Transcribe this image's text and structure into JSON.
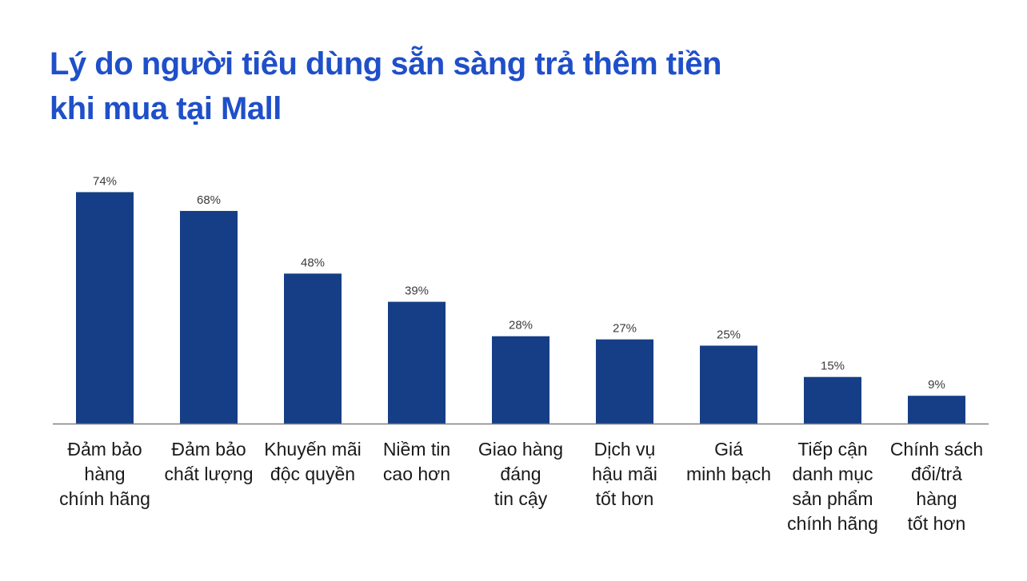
{
  "title": {
    "line1": "Lý do người tiêu dùng sẵn sàng trả thêm tiền",
    "line2": "khi mua tại Mall"
  },
  "chart_data": {
    "type": "bar",
    "title": "Lý do người tiêu dùng sẵn sàng trả thêm tiền khi mua tại Mall",
    "xlabel": "",
    "ylabel": "",
    "ylim": [
      0,
      80
    ],
    "grid": false,
    "legend": "none",
    "bar_color": "#163e86",
    "title_color": "#1f4fc9",
    "categories": [
      [
        "Đảm bảo",
        "hàng",
        "chính hãng"
      ],
      [
        "Đảm bảo",
        "chất lượng"
      ],
      [
        "Khuyến mãi",
        "độc quyền"
      ],
      [
        "Niềm tin",
        "cao hơn"
      ],
      [
        "Giao hàng",
        "đáng",
        "tin cậy"
      ],
      [
        "Dịch vụ",
        "hậu mãi",
        "tốt hơn"
      ],
      [
        "Giá",
        "minh bạch"
      ],
      [
        "Tiếp cận",
        "danh mục",
        "sản phẩm",
        "chính hãng"
      ],
      [
        "Chính sách",
        "đổi/trả",
        "hàng",
        "tốt hơn"
      ]
    ],
    "values": [
      74,
      68,
      48,
      39,
      28,
      27,
      25,
      15,
      9
    ],
    "value_labels": [
      "74%",
      "68%",
      "48%",
      "39%",
      "28%",
      "27%",
      "25%",
      "15%",
      "9%"
    ]
  }
}
